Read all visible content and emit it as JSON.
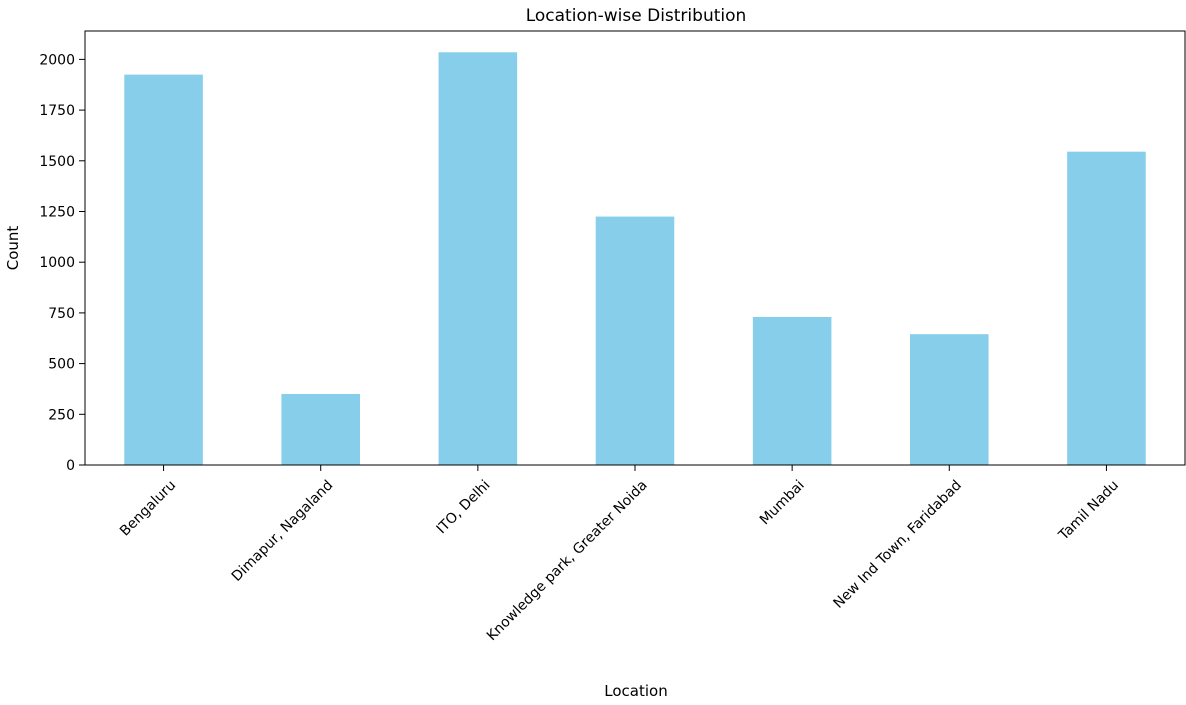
{
  "chart_data": {
    "type": "bar",
    "title": "Location-wise Distribution",
    "xlabel": "Location",
    "ylabel": "Count",
    "categories": [
      "Bengaluru",
      "Dimapur, Nagaland",
      "ITO, Delhi",
      "Knowledge park, Greater Noida",
      "Mumbai",
      "New Ind Town, Faridabad",
      "Tamil Nadu"
    ],
    "values": [
      1925,
      350,
      2035,
      1225,
      730,
      645,
      1545
    ],
    "ylim": [
      0,
      2140
    ],
    "yticks": [
      0,
      250,
      500,
      750,
      1000,
      1250,
      1500,
      1750,
      2000
    ],
    "bar_color": "#87CEEB",
    "grid": false,
    "legend": "none"
  }
}
